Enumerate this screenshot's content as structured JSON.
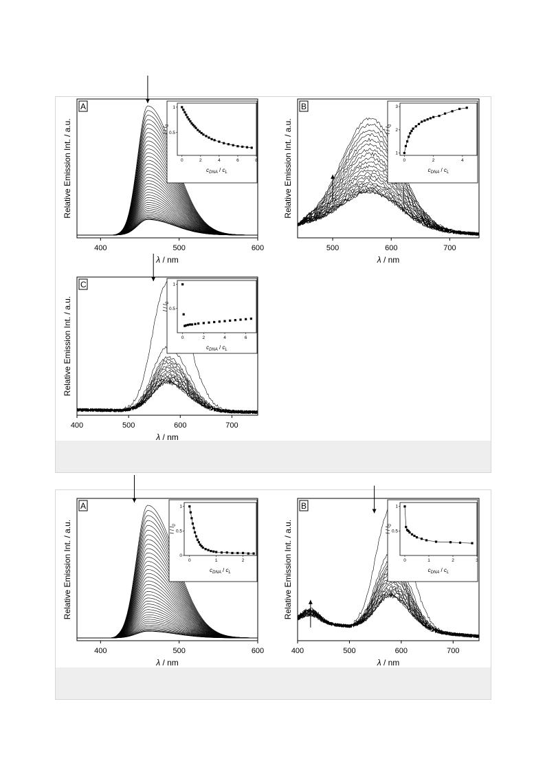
{
  "figures": [
    {
      "panels": [
        {
          "panel_label": "A",
          "chart_data": {
            "type": "line",
            "xlabel_symbol": "λ",
            "xlabel_unit": " / nm",
            "ylabel": "Relative Emission Int. / a.u.",
            "xlim": [
              370,
              600
            ],
            "xticks": [
              400,
              500,
              600
            ],
            "peak_x": 460,
            "onset": 410,
            "width_left": 18,
            "width_right": 48,
            "curve_count": 40,
            "max_intensity": 1.0,
            "min_intensity": 0.12,
            "arrow_direction": "down",
            "arrow_x": 460,
            "inset": {
              "type": "scatter",
              "xlabel_base": "c",
              "xlabel_sub": "DNA",
              "xlabel_sep": " / ",
              "xlabel_base2": "c",
              "xlabel_sub2": "L",
              "ylabel_base": "I",
              "ylabel_sep": " / ",
              "ylabel_base2": "I",
              "ylabel_sub2": "0",
              "xlim": [
                -0.5,
                8
              ],
              "ylim": [
                0.05,
                1.08
              ],
              "xticks": [
                0,
                2,
                4,
                6,
                8
              ],
              "yticks": [
                0.5,
                1.0
              ],
              "x": [
                0,
                0.15,
                0.3,
                0.45,
                0.6,
                0.75,
                0.9,
                1.05,
                1.2,
                1.35,
                1.5,
                1.7,
                1.9,
                2.1,
                2.3,
                2.6,
                2.9,
                3.2,
                3.5,
                4.0,
                4.5,
                5.0,
                5.5,
                6.0,
                6.5,
                7.0,
                7.5
              ],
              "y": [
                1.0,
                0.95,
                0.9,
                0.85,
                0.8,
                0.76,
                0.72,
                0.68,
                0.65,
                0.62,
                0.59,
                0.55,
                0.52,
                0.49,
                0.46,
                0.43,
                0.4,
                0.37,
                0.35,
                0.32,
                0.29,
                0.27,
                0.25,
                0.23,
                0.22,
                0.21,
                0.2
              ],
              "fit": true
            }
          }
        },
        {
          "panel_label": "B",
          "chart_data": {
            "type": "line",
            "xlabel_symbol": "λ",
            "xlabel_unit": " / nm",
            "ylabel": "Relative Emission Int. / a.u.",
            "xlim": [
              440,
              750
            ],
            "xticks": [
              500,
              600,
              700
            ],
            "peak_x": 565,
            "onset": 440,
            "width_left": 70,
            "width_right": 70,
            "curve_count": 22,
            "max_intensity": 0.85,
            "min_intensity": 0.28,
            "noisy": true,
            "baseline": 0.08,
            "arrow_direction": "up",
            "arrow_x": 500,
            "inset": {
              "type": "scatter",
              "xlabel_base": "c",
              "xlabel_sub": "DNA",
              "xlabel_sep": " / ",
              "xlabel_base2": "c",
              "xlabel_sub2": "L",
              "ylabel_base": "I",
              "ylabel_sep": " / ",
              "ylabel_base2": "I",
              "ylabel_sub2": "0",
              "xlim": [
                -0.3,
                5
              ],
              "ylim": [
                0.9,
                3.15
              ],
              "xticks": [
                0,
                2,
                4
              ],
              "yticks": [
                1,
                2,
                3
              ],
              "x": [
                0,
                0.1,
                0.2,
                0.3,
                0.4,
                0.5,
                0.6,
                0.8,
                1.0,
                1.2,
                1.4,
                1.6,
                1.8,
                2.0,
                2.4,
                2.8,
                3.3,
                3.8,
                4.3
              ],
              "y": [
                1.0,
                1.3,
                1.5,
                1.7,
                1.85,
                1.95,
                2.05,
                2.15,
                2.25,
                2.35,
                2.4,
                2.45,
                2.5,
                2.55,
                2.6,
                2.7,
                2.8,
                2.9,
                2.95
              ],
              "fit": true
            }
          }
        },
        {
          "panel_label": "C",
          "chart_data": {
            "type": "line",
            "xlabel_symbol": "λ",
            "xlabel_unit": " / nm",
            "ylabel": "Relative Emission Int. / a.u.",
            "xlim": [
              400,
              750
            ],
            "xticks": [
              400,
              500,
              600,
              700
            ],
            "peak_x": 575,
            "onset": 480,
            "width_left": 40,
            "width_right": 55,
            "curve_count": 14,
            "max_intensity": 0.42,
            "min_intensity": 0.22,
            "extra_top": 1.0,
            "extra_second": 0.5,
            "noisy": true,
            "baseline": 0.02,
            "arrow_direction": "down",
            "arrow_x": 548,
            "inset": {
              "type": "scatter",
              "xlabel_base": "c",
              "xlabel_sub": "DNA",
              "xlabel_sep": " / ",
              "xlabel_base2": "c",
              "xlabel_sub2": "L",
              "ylabel_base": "I",
              "ylabel_sep": " / ",
              "ylabel_base2": "I",
              "ylabel_sub2": "0",
              "xlim": [
                -0.5,
                7
              ],
              "ylim": [
                0.0,
                1.08
              ],
              "xticks": [
                0,
                2,
                4,
                6
              ],
              "yticks": [
                0.5,
                1.0
              ],
              "x": [
                0,
                0.1,
                0.2,
                0.3,
                0.5,
                0.7,
                0.9,
                1.2,
                1.5,
                2.0,
                2.5,
                3.0,
                3.5,
                4.0,
                4.5,
                5.0,
                5.5,
                6.0,
                6.5
              ],
              "y": [
                1.0,
                0.38,
                0.14,
                0.15,
                0.16,
                0.17,
                0.17,
                0.18,
                0.19,
                0.2,
                0.21,
                0.22,
                0.23,
                0.24,
                0.25,
                0.26,
                0.27,
                0.28,
                0.29
              ],
              "fit": false
            }
          }
        }
      ]
    },
    {
      "panels": [
        {
          "panel_label": "A",
          "chart_data": {
            "type": "line",
            "xlabel_symbol": "λ",
            "xlabel_unit": " / nm",
            "ylabel": "Relative Emission Int. / a.u.",
            "xlim": [
              370,
              600
            ],
            "xticks": [
              400,
              500,
              600
            ],
            "peak_x": 460,
            "onset": 410,
            "width_left": 20,
            "width_right": 50,
            "curve_count": 40,
            "max_intensity": 1.0,
            "min_intensity": 0.05,
            "arrow_direction": "down",
            "arrow_x": 443,
            "inset": {
              "type": "scatter",
              "xlabel_base": "c",
              "xlabel_sub": "DNA",
              "xlabel_sep": " / ",
              "xlabel_base2": "c",
              "xlabel_sub2": "L",
              "ylabel_base": "I",
              "ylabel_sep": " / ",
              "ylabel_base2": "I",
              "ylabel_sub2": "0",
              "xlim": [
                -0.2,
                2.5
              ],
              "ylim": [
                0.0,
                1.08
              ],
              "xticks": [
                0,
                1,
                2
              ],
              "yticks": [
                0.0,
                0.5,
                1.0
              ],
              "x": [
                0,
                0.04,
                0.08,
                0.12,
                0.16,
                0.2,
                0.25,
                0.3,
                0.35,
                0.4,
                0.45,
                0.5,
                0.6,
                0.7,
                0.8,
                0.9,
                1.0,
                1.2,
                1.4,
                1.6,
                1.8,
                2.0,
                2.2,
                2.4
              ],
              "y": [
                1.0,
                0.88,
                0.76,
                0.65,
                0.56,
                0.47,
                0.39,
                0.32,
                0.27,
                0.22,
                0.19,
                0.16,
                0.13,
                0.11,
                0.09,
                0.08,
                0.07,
                0.06,
                0.06,
                0.05,
                0.05,
                0.05,
                0.04,
                0.04
              ],
              "fit": true
            }
          }
        },
        {
          "panel_label": "B",
          "chart_data": {
            "type": "line",
            "xlabel_symbol": "λ",
            "xlabel_unit": " / nm",
            "ylabel": "Relative Emission Int. / a.u.",
            "xlim": [
              400,
              750
            ],
            "xticks": [
              400,
              500,
              600,
              700
            ],
            "peak_x": 580,
            "onset": 500,
            "width_left": 40,
            "width_right": 50,
            "curve_count": 16,
            "max_intensity": 0.52,
            "min_intensity": 0.25,
            "extra_top": 0.92,
            "extra_second": 0.58,
            "noisy": true,
            "baseline": 0.12,
            "side_peak": 425,
            "arrow_direction": "down",
            "arrow_x": 548,
            "arrow2_direction": "up",
            "arrow2_x": 425,
            "inset": {
              "type": "scatter",
              "xlabel_base": "c",
              "xlabel_sub": "DNA",
              "xlabel_sep": " / ",
              "xlabel_base2": "c",
              "xlabel_sub2": "L",
              "ylabel_base": "I",
              "ylabel_sep": " / ",
              "ylabel_base2": "I",
              "ylabel_sub2": "0",
              "xlim": [
                -0.2,
                3
              ],
              "ylim": [
                0.0,
                1.08
              ],
              "xticks": [
                0,
                1,
                2,
                3
              ],
              "yticks": [
                0.5,
                1.0
              ],
              "x": [
                0,
                0.05,
                0.1,
                0.15,
                0.2,
                0.3,
                0.4,
                0.5,
                0.7,
                0.9,
                1.3,
                1.9,
                2.3,
                2.8
              ],
              "y": [
                1.0,
                0.58,
                0.52,
                0.5,
                0.47,
                0.43,
                0.4,
                0.37,
                0.34,
                0.31,
                0.28,
                0.27,
                0.26,
                0.25
              ],
              "fit": true
            }
          }
        }
      ]
    }
  ]
}
